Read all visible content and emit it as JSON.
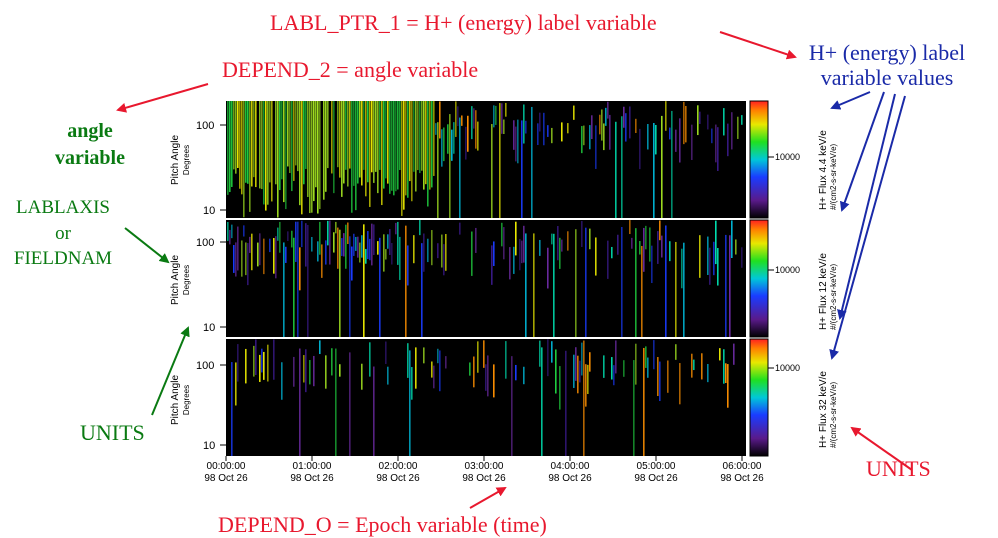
{
  "annotations": {
    "labl_ptr": "LABL_PTR_1 = H+ (energy) label variable",
    "depend_2": "DEPEND_2 = angle variable",
    "label_values_1": "H+ (energy) label",
    "label_values_2": "variable values",
    "angle_1": "angle",
    "angle_2": "variable",
    "lablaxis_1": "LABLAXIS",
    "lablaxis_2": "or",
    "lablaxis_3": "FIELDNAM",
    "units_left": "UNITS",
    "units_right": "UNITS",
    "depend_0": "DEPEND_O = Epoch variable (time)"
  },
  "panels": [
    {
      "ylabel_1": "Pitch Angle",
      "ylabel_2": "Degrees",
      "tick_100": "100",
      "tick_10": "10",
      "cb_label": "10000",
      "side_label_1": "H+ Flux 4.4 keV/e",
      "side_label_2": "#/(cm2-s-sr-keV/e)"
    },
    {
      "ylabel_1": "Pitch Angle",
      "ylabel_2": "Degrees",
      "tick_100": "100",
      "tick_10": "10",
      "cb_label": "10000",
      "side_label_1": "H+ Flux 12 keV/e",
      "side_label_2": "#/(cm2-s-sr-keV/e)"
    },
    {
      "ylabel_1": "Pitch Angle",
      "ylabel_2": "Degrees",
      "tick_100": "100",
      "tick_10": "10",
      "cb_label": "10000",
      "side_label_1": "H+ Flux 32 keV/e",
      "side_label_2": "#/(cm2-s-sr-keV/e)"
    }
  ],
  "time_axis": [
    {
      "time": "00:00:00",
      "date": "98 Oct 26"
    },
    {
      "time": "01:00:00",
      "date": "98 Oct 26"
    },
    {
      "time": "02:00:00",
      "date": "98 Oct 26"
    },
    {
      "time": "03:00:00",
      "date": "98 Oct 26"
    },
    {
      "time": "04:00:00",
      "date": "98 Oct 26"
    },
    {
      "time": "05:00:00",
      "date": "98 Oct 26"
    },
    {
      "time": "06:00:00",
      "date": "98 Oct 26"
    }
  ],
  "colors": {
    "annotation_red": "#e8182e",
    "annotation_blue": "#1a2aa8",
    "annotation_green": "#0a7a12",
    "plot_background": "#000000"
  }
}
